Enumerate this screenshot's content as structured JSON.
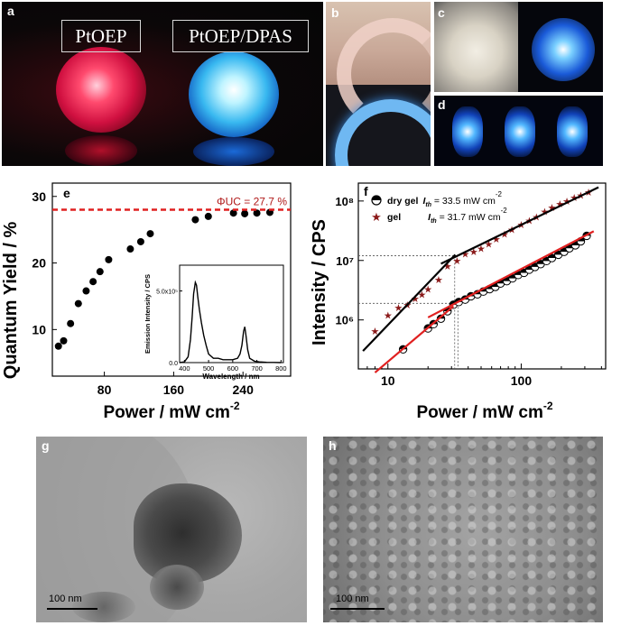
{
  "photos": {
    "a": {
      "letter": "a",
      "left_label": "PtOEP",
      "right_label": "PtOEP/DPAS"
    },
    "b": {
      "letter": "b"
    },
    "c": {
      "letter": "c"
    },
    "d": {
      "letter": "d"
    },
    "g": {
      "letter": "g",
      "scalebar": "100 nm"
    },
    "h": {
      "letter": "h",
      "scalebar": "100 nm"
    }
  },
  "chart_data": [
    {
      "panel": "e",
      "type": "scatter",
      "xlabel": "Power / mW cm",
      "xlabel_sup": "-2",
      "ylabel": "Quantum Yield / %",
      "xlim": [
        20,
        295
      ],
      "ylim": [
        3,
        32
      ],
      "xticks": [
        80,
        160,
        240
      ],
      "yticks": [
        10,
        20,
        30
      ],
      "reference_line": {
        "y": 28,
        "label": "ΦUC = 27.7 %",
        "color": "#e02020"
      },
      "x": [
        27,
        33,
        41,
        50,
        59,
        67,
        75,
        85,
        110,
        122,
        133,
        185,
        200,
        229,
        242,
        256,
        271
      ],
      "y": [
        7.5,
        8.3,
        10.9,
        13.9,
        15.8,
        17.2,
        18.7,
        20.5,
        22.1,
        23.2,
        24.4,
        26.5,
        27.0,
        27.5,
        27.4,
        27.5,
        27.6
      ],
      "inset": {
        "type": "line",
        "xlabel": "Wavelength / nm",
        "ylabel": "Emission Intensity / CPS",
        "xlim": [
          380,
          810
        ],
        "ylim": [
          0,
          6.8
        ],
        "xticks": [
          400,
          500,
          600,
          700,
          800
        ],
        "ytick_labels": [
          "0.0",
          "5.0x10⁵"
        ],
        "x": [
          380,
          400,
          415,
          425,
          432,
          438,
          445,
          450,
          455,
          462,
          470,
          480,
          490,
          500,
          520,
          540,
          560,
          580,
          600,
          620,
          630,
          638,
          645,
          650,
          655,
          662,
          670,
          690,
          710,
          740,
          770,
          800
        ],
        "y": [
          0.0,
          0.05,
          0.4,
          1.6,
          3.2,
          4.8,
          5.6,
          5.4,
          4.6,
          3.7,
          2.8,
          1.9,
          1.2,
          0.6,
          0.3,
          0.3,
          0.2,
          0.2,
          0.2,
          0.3,
          0.6,
          1.2,
          2.2,
          2.5,
          1.9,
          0.9,
          0.3,
          0.1,
          0.05,
          0.02,
          0.01,
          0.0
        ]
      }
    },
    {
      "panel": "f",
      "type": "scatter",
      "log_x": true,
      "log_y": true,
      "xlabel": "Power  / mW cm",
      "xlabel_sup": "-2",
      "ylabel": "Intensity / CPS",
      "xlim": [
        6,
        430
      ],
      "ylim": [
        150000,
        200000000
      ],
      "xtick_labels": [
        "10",
        "100"
      ],
      "ytick_labels": [
        "10⁶",
        "10⁷",
        "10⁸"
      ],
      "series": [
        {
          "name": "dry gel",
          "threshold_label": "I",
          "threshold_sub": "th",
          "threshold_value": " = 33.5 mW cm",
          "threshold_sup": "-2",
          "marker": "half-circle",
          "x": [
            13,
            20,
            22,
            25,
            28,
            31,
            34,
            38,
            42,
            47,
            52,
            58,
            64,
            70,
            78,
            86,
            95,
            105,
            115,
            127,
            140,
            155,
            170,
            190,
            210,
            230,
            255,
            280,
            310
          ],
          "y": [
            320000,
            720000,
            850000,
            1050000,
            1400000,
            1800000,
            2000000,
            2200000,
            2500000,
            2700000,
            3000000,
            3300000,
            3600000,
            4100000,
            4500000,
            5000000,
            5700000,
            6200000,
            7000000,
            7800000,
            8700000,
            9800000,
            11000000,
            12500000,
            14000000,
            16000000,
            18000000,
            21000000,
            26000000
          ],
          "fit_low": {
            "x": [
              8,
              31
            ],
            "y": [
              130000,
              1700000
            ]
          },
          "fit_high": {
            "x": [
              20,
              350
            ],
            "y": [
              1100000,
              31000000
            ]
          }
        },
        {
          "name": "gel",
          "threshold_label": "I",
          "threshold_sub": "th",
          "threshold_value": " = 31.7 mW cm",
          "threshold_sup": "-2",
          "marker": "star",
          "color": "#8b1a1a",
          "x": [
            8,
            10,
            12,
            14,
            16,
            18,
            20,
            24,
            28,
            33,
            38,
            44,
            50,
            57,
            65,
            75,
            85,
            100,
            115,
            130,
            150,
            170,
            195,
            220,
            250,
            280,
            320
          ],
          "y": [
            650000,
            1200000,
            1600000,
            1800000,
            2300000,
            2700000,
            3300000,
            4800000,
            8000000,
            10000000,
            13000000,
            14000000,
            16000000,
            19000000,
            23000000,
            28000000,
            33000000,
            40000000,
            47000000,
            54000000,
            66000000,
            78000000,
            90000000,
            100000000,
            115000000,
            125000000,
            140000000
          ],
          "fit_low": {
            "x": [
              6.5,
              32
            ],
            "y": [
              300000,
              12500000
            ]
          },
          "fit_high": {
            "x": [
              25,
              380
            ],
            "y": [
              8800000,
              170000000
            ]
          }
        }
      ],
      "threshold_guides": [
        {
          "x": 33.5,
          "y": 1900000
        },
        {
          "x": 31.7,
          "y": 12000000
        }
      ]
    }
  ]
}
